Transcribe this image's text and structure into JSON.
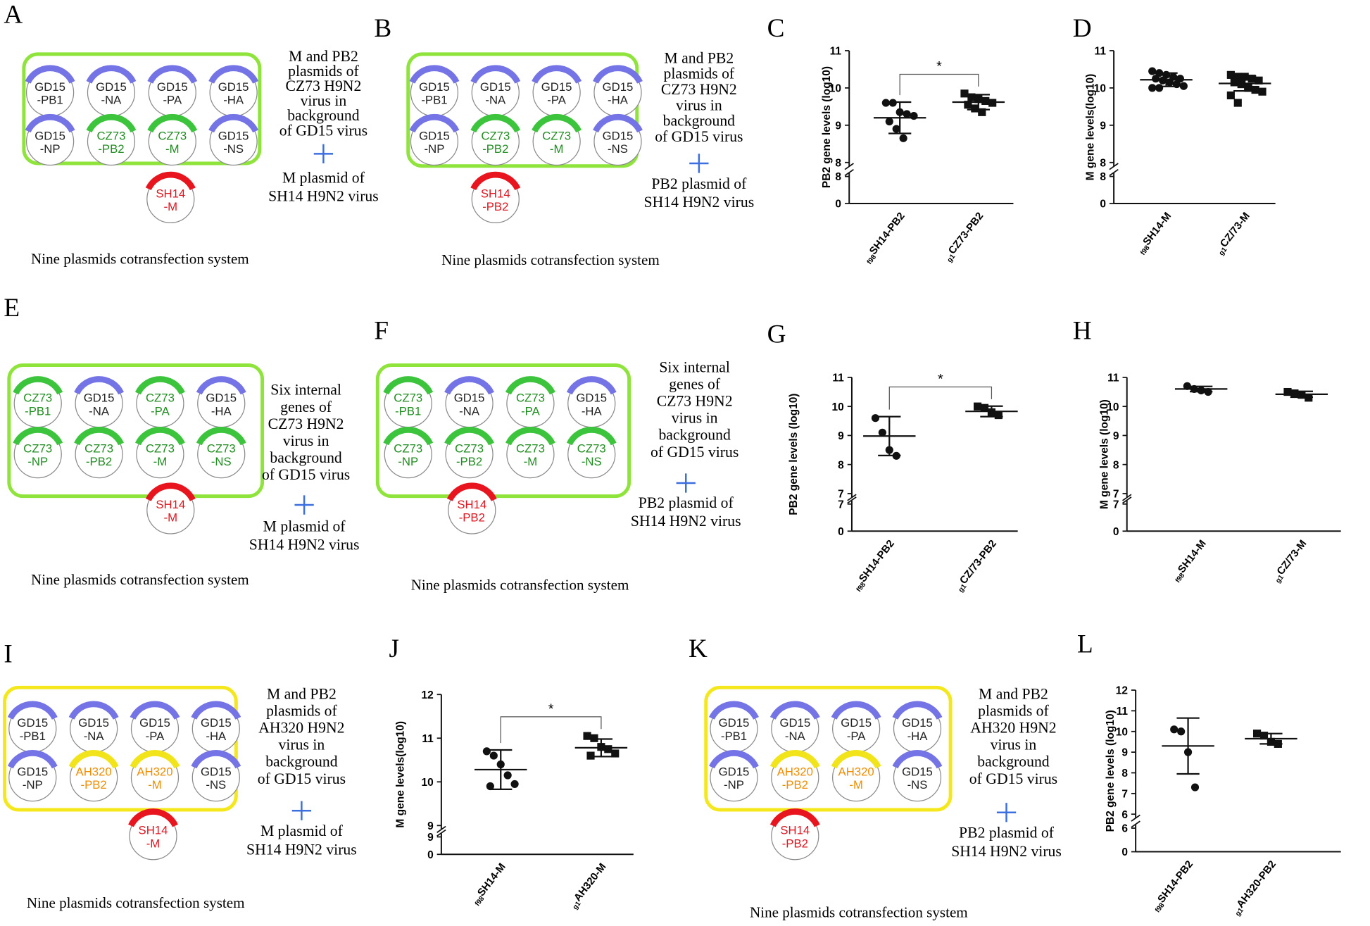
{
  "diagrams": [
    {
      "panel_label": "A",
      "box_color": "#8ee43a",
      "plasmids": [
        {
          "label": [
            "GD15",
            "-PB1"
          ],
          "arc_color": "#7474e6",
          "text_color": "#222222"
        },
        {
          "label": [
            "GD15",
            "-NA"
          ],
          "arc_color": "#7474e6",
          "text_color": "#222222"
        },
        {
          "label": [
            "GD15",
            "-PA"
          ],
          "arc_color": "#7474e6",
          "text_color": "#222222"
        },
        {
          "label": [
            "GD15",
            "-HA"
          ],
          "arc_color": "#7474e6",
          "text_color": "#222222"
        },
        {
          "label": [
            "GD15",
            "-NP"
          ],
          "arc_color": "#7474e6",
          "text_color": "#222222"
        },
        {
          "label": [
            "CZ73",
            "-PB2"
          ],
          "arc_color": "#3cc43c",
          "text_color": "#1e8c1e"
        },
        {
          "label": [
            "CZ73",
            "-M"
          ],
          "arc_color": "#3cc43c",
          "text_color": "#1e8c1e"
        },
        {
          "label": [
            "GD15",
            "-NS"
          ],
          "arc_color": "#7474e6",
          "text_color": "#222222"
        }
      ],
      "added_plasmid": {
        "label": [
          "SH14",
          "-M"
        ],
        "arc_color": "#e8141e",
        "text_color": "#e0141e"
      },
      "description": [
        "M and PB2",
        "plasmids of",
        "CZ73 H9N2",
        "virus in",
        "background",
        "of GD15 virus"
      ],
      "added_description": [
        "M plasmid of",
        "SH14 H9N2 virus"
      ],
      "caption": "Nine plasmids cotransfection system"
    },
    {
      "panel_label": "B",
      "box_color": "#8ee43a",
      "plasmids": [
        {
          "label": [
            "GD15",
            "-PB1"
          ],
          "arc_color": "#7474e6",
          "text_color": "#222222"
        },
        {
          "label": [
            "GD15",
            "-NA"
          ],
          "arc_color": "#7474e6",
          "text_color": "#222222"
        },
        {
          "label": [
            "GD15",
            "-PA"
          ],
          "arc_color": "#7474e6",
          "text_color": "#222222"
        },
        {
          "label": [
            "GD15",
            "-HA"
          ],
          "arc_color": "#7474e6",
          "text_color": "#222222"
        },
        {
          "label": [
            "GD15",
            "-NP"
          ],
          "arc_color": "#7474e6",
          "text_color": "#222222"
        },
        {
          "label": [
            "CZ73",
            "-PB2"
          ],
          "arc_color": "#3cc43c",
          "text_color": "#1e8c1e"
        },
        {
          "label": [
            "CZ73",
            "-M"
          ],
          "arc_color": "#3cc43c",
          "text_color": "#1e8c1e"
        },
        {
          "label": [
            "GD15",
            "-NS"
          ],
          "arc_color": "#7474e6",
          "text_color": "#222222"
        }
      ],
      "added_plasmid": {
        "label": [
          "SH14",
          "-PB2"
        ],
        "arc_color": "#e8141e",
        "text_color": "#e0141e"
      },
      "description": [
        "M and PB2",
        "plasmids of",
        "CZ73 H9N2",
        "virus in",
        "background",
        "of GD15 virus"
      ],
      "added_description": [
        "PB2 plasmid of",
        "SH14 H9N2 virus"
      ],
      "caption": "Nine plasmids cotransfection system"
    },
    {
      "panel_label": "E",
      "box_color": "#8ee43a",
      "plasmids": [
        {
          "label": [
            "CZ73",
            "-PB1"
          ],
          "arc_color": "#3cc43c",
          "text_color": "#1e8c1e"
        },
        {
          "label": [
            "GD15",
            "-NA"
          ],
          "arc_color": "#7474e6",
          "text_color": "#222222"
        },
        {
          "label": [
            "CZ73",
            "-PA"
          ],
          "arc_color": "#3cc43c",
          "text_color": "#1e8c1e"
        },
        {
          "label": [
            "GD15",
            "-HA"
          ],
          "arc_color": "#7474e6",
          "text_color": "#222222"
        },
        {
          "label": [
            "CZ73",
            "-NP"
          ],
          "arc_color": "#3cc43c",
          "text_color": "#1e8c1e"
        },
        {
          "label": [
            "CZ73",
            "-PB2"
          ],
          "arc_color": "#3cc43c",
          "text_color": "#1e8c1e"
        },
        {
          "label": [
            "CZ73",
            "-M"
          ],
          "arc_color": "#3cc43c",
          "text_color": "#1e8c1e"
        },
        {
          "label": [
            "CZ73",
            "-NS"
          ],
          "arc_color": "#3cc43c",
          "text_color": "#1e8c1e"
        }
      ],
      "added_plasmid": {
        "label": [
          "SH14",
          "-M"
        ],
        "arc_color": "#e8141e",
        "text_color": "#e0141e"
      },
      "description": [
        "Six internal",
        "genes of",
        "CZ73 H9N2",
        "virus in",
        "background",
        "of GD15 virus"
      ],
      "added_description": [
        "M plasmid of",
        "SH14 H9N2 virus"
      ],
      "caption": "Nine plasmids cotransfection system"
    },
    {
      "panel_label": "F",
      "box_color": "#8ee43a",
      "plasmids": [
        {
          "label": [
            "CZ73",
            "-PB1"
          ],
          "arc_color": "#3cc43c",
          "text_color": "#1e8c1e"
        },
        {
          "label": [
            "GD15",
            "-NA"
          ],
          "arc_color": "#7474e6",
          "text_color": "#222222"
        },
        {
          "label": [
            "CZ73",
            "-PA"
          ],
          "arc_color": "#3cc43c",
          "text_color": "#1e8c1e"
        },
        {
          "label": [
            "GD15",
            "-HA"
          ],
          "arc_color": "#7474e6",
          "text_color": "#222222"
        },
        {
          "label": [
            "CZ73",
            "-NP"
          ],
          "arc_color": "#3cc43c",
          "text_color": "#1e8c1e"
        },
        {
          "label": [
            "CZ73",
            "-PB2"
          ],
          "arc_color": "#3cc43c",
          "text_color": "#1e8c1e"
        },
        {
          "label": [
            "CZ73",
            "-M"
          ],
          "arc_color": "#3cc43c",
          "text_color": "#1e8c1e"
        },
        {
          "label": [
            "CZ73",
            "-NS"
          ],
          "arc_color": "#3cc43c",
          "text_color": "#1e8c1e"
        }
      ],
      "added_plasmid": {
        "label": [
          "SH14",
          "-PB2"
        ],
        "arc_color": "#e8141e",
        "text_color": "#e0141e"
      },
      "description": [
        "Six internal",
        "genes of",
        "CZ73 H9N2",
        "virus in",
        "background",
        "of GD15 virus"
      ],
      "added_description": [
        "PB2 plasmid of",
        "SH14 H9N2 virus"
      ],
      "caption": "Nine plasmids cotransfection system"
    },
    {
      "panel_label": "I",
      "box_color": "#f4e81c",
      "plasmids": [
        {
          "label": [
            "GD15",
            "-PB1"
          ],
          "arc_color": "#7474e6",
          "text_color": "#222222"
        },
        {
          "label": [
            "GD15",
            "-NA"
          ],
          "arc_color": "#7474e6",
          "text_color": "#222222"
        },
        {
          "label": [
            "GD15",
            "-PA"
          ],
          "arc_color": "#7474e6",
          "text_color": "#222222"
        },
        {
          "label": [
            "GD15",
            "-HA"
          ],
          "arc_color": "#7474e6",
          "text_color": "#222222"
        },
        {
          "label": [
            "GD15",
            "-NP"
          ],
          "arc_color": "#7474e6",
          "text_color": "#222222"
        },
        {
          "label": [
            "AH320",
            "-PB2"
          ],
          "arc_color": "#f2e41a",
          "text_color": "#f08c00"
        },
        {
          "label": [
            "AH320",
            "-M"
          ],
          "arc_color": "#f2e41a",
          "text_color": "#f08c00"
        },
        {
          "label": [
            "GD15",
            "-NS"
          ],
          "arc_color": "#7474e6",
          "text_color": "#222222"
        }
      ],
      "added_plasmid": {
        "label": [
          "SH14",
          "-M"
        ],
        "arc_color": "#e8141e",
        "text_color": "#e0141e"
      },
      "description": [
        "M and PB2",
        "plasmids of",
        "AH320 H9N2",
        "virus in",
        "background",
        "of GD15 virus"
      ],
      "added_description": [
        "M plasmid of",
        "SH14 H9N2 virus"
      ],
      "caption": "Nine plasmids cotransfection system"
    },
    {
      "panel_label": "K",
      "box_color": "#f4e81c",
      "plasmids": [
        {
          "label": [
            "GD15",
            "-PB1"
          ],
          "arc_color": "#7474e6",
          "text_color": "#222222"
        },
        {
          "label": [
            "GD15",
            "-NA"
          ],
          "arc_color": "#7474e6",
          "text_color": "#222222"
        },
        {
          "label": [
            "GD15",
            "-PA"
          ],
          "arc_color": "#7474e6",
          "text_color": "#222222"
        },
        {
          "label": [
            "GD15",
            "-HA"
          ],
          "arc_color": "#7474e6",
          "text_color": "#222222"
        },
        {
          "label": [
            "GD15",
            "-NP"
          ],
          "arc_color": "#7474e6",
          "text_color": "#222222"
        },
        {
          "label": [
            "AH320",
            "-PB2"
          ],
          "arc_color": "#f2e41a",
          "text_color": "#f08c00"
        },
        {
          "label": [
            "AH320",
            "-M"
          ],
          "arc_color": "#f2e41a",
          "text_color": "#f08c00"
        },
        {
          "label": [
            "GD15",
            "-NS"
          ],
          "arc_color": "#7474e6",
          "text_color": "#222222"
        }
      ],
      "added_plasmid": {
        "label": [
          "SH14",
          "-PB2"
        ],
        "arc_color": "#e8141e",
        "text_color": "#e0141e"
      },
      "description": [
        "M and PB2",
        "plasmids of",
        "AH320 H9N2",
        "virus in",
        "background",
        "of GD15 virus"
      ],
      "added_description": [
        "PB2 plasmid of",
        "SH14 H9N2 virus"
      ],
      "caption": "Nine plasmids cotransfection system"
    }
  ],
  "chart_data": [
    {
      "type": "dot",
      "panel_label": "C",
      "y_label": "PB2 gene levels (log10)",
      "ylim": [
        8,
        11
      ],
      "yticks": [
        8,
        9,
        10,
        11
      ],
      "lower_ylim": [
        0,
        8
      ],
      "lower_yticks": [
        0,
        8
      ],
      "significance": "*",
      "groups": [
        {
          "label": {
            "sub": "f98",
            "main": "SH14-PB2"
          },
          "marker": "circle",
          "color": "#111111",
          "points": [
            9.6,
            9.6,
            9.35,
            9.3,
            9.25,
            9.1,
            8.9,
            8.65
          ],
          "mean": 9.2,
          "sd": 0.42
        },
        {
          "label": {
            "sub": "g1",
            "main": "CZ73-PB2"
          },
          "marker": "square",
          "color": "#111111",
          "points": [
            9.85,
            9.75,
            9.7,
            9.65,
            9.6,
            9.55,
            9.45,
            9.35
          ],
          "mean": 9.62,
          "sd": 0.2
        }
      ]
    },
    {
      "type": "dot",
      "panel_label": "D",
      "y_label": "M gene levels(log10)",
      "ylim": [
        8,
        11
      ],
      "yticks": [
        8,
        9,
        10,
        11
      ],
      "lower_ylim": [
        0,
        8
      ],
      "lower_yticks": [
        0,
        8
      ],
      "groups": [
        {
          "label": {
            "sub": "f98",
            "main": "SH14-M"
          },
          "marker": "circle",
          "color": "#111111",
          "points": [
            10.45,
            10.4,
            10.35,
            10.3,
            10.25,
            10.25,
            10.2,
            10.15,
            10.1,
            10.05,
            10.0,
            10.0
          ],
          "mean": 10.22,
          "sd": 0.18
        },
        {
          "label": {
            "sub": "g1",
            "main": "CZ/73-M"
          },
          "marker": "square",
          "color": "#111111",
          "points": [
            10.35,
            10.3,
            10.3,
            10.25,
            10.2,
            10.15,
            10.1,
            10.0,
            9.95,
            9.9,
            9.8,
            9.6
          ],
          "mean": 10.12,
          "sd": 0.2
        }
      ]
    },
    {
      "type": "dot",
      "panel_label": "G",
      "y_label": "PB2 gene levels (log10)",
      "ylim": [
        7,
        11
      ],
      "yticks": [
        7,
        8,
        9,
        10,
        11
      ],
      "lower_ylim": [
        0,
        7
      ],
      "lower_yticks": [
        0,
        7
      ],
      "significance": "*",
      "groups": [
        {
          "label": {
            "sub": "f98",
            "main": "SH14-PB2"
          },
          "marker": "circle",
          "color": "#111111",
          "points": [
            9.6,
            9.1,
            8.5,
            8.3
          ],
          "mean": 8.98,
          "sd": 0.67
        },
        {
          "label": {
            "sub": "g1",
            "main": "CZ/73-PB2"
          },
          "marker": "square",
          "color": "#111111",
          "points": [
            10.0,
            9.95,
            9.8,
            9.7
          ],
          "mean": 9.83,
          "sd": 0.18
        }
      ]
    },
    {
      "type": "dot",
      "panel_label": "H",
      "y_label": "M gene levels (log10)",
      "ylim": [
        7,
        11
      ],
      "yticks": [
        7,
        8,
        9,
        10,
        11
      ],
      "lower_ylim": [
        0,
        7
      ],
      "lower_yticks": [
        0,
        7
      ],
      "groups": [
        {
          "label": {
            "sub": "f98",
            "main": "SH14-M"
          },
          "marker": "circle",
          "color": "#111111",
          "points": [
            10.7,
            10.6,
            10.55,
            10.5
          ],
          "mean": 10.6,
          "sd": 0.09
        },
        {
          "label": {
            "sub": "g1",
            "main": "CZ/73-M"
          },
          "marker": "square",
          "color": "#111111",
          "points": [
            10.5,
            10.45,
            10.4,
            10.3
          ],
          "mean": 10.42,
          "sd": 0.1
        }
      ]
    },
    {
      "type": "dot",
      "panel_label": "J",
      "y_label": "M gene levels(log10)",
      "ylim": [
        9,
        12
      ],
      "yticks": [
        9,
        10,
        11,
        12
      ],
      "lower_ylim": [
        0,
        9
      ],
      "lower_yticks": [
        0,
        9
      ],
      "significance": "*",
      "groups": [
        {
          "label": {
            "sub": "f98",
            "main": "SH14-M"
          },
          "marker": "circle",
          "color": "#111111",
          "points": [
            10.7,
            10.6,
            10.4,
            10.15,
            9.95,
            9.9
          ],
          "mean": 10.28,
          "sd": 0.45
        },
        {
          "label": {
            "sub": "g1",
            "main": "AH320-M"
          },
          "marker": "square",
          "color": "#111111",
          "points": [
            11.05,
            11.0,
            10.8,
            10.75,
            10.65,
            10.6
          ],
          "mean": 10.78,
          "sd": 0.2
        }
      ]
    },
    {
      "type": "dot",
      "panel_label": "L",
      "y_label": "PB2 gene levels (log10)",
      "ylim": [
        6,
        12
      ],
      "yticks": [
        6,
        7,
        8,
        9,
        10,
        11,
        12
      ],
      "lower_ylim": [
        0,
        6
      ],
      "lower_yticks": [
        0,
        6
      ],
      "groups": [
        {
          "label": {
            "sub": "f98",
            "main": "SH14-PB2"
          },
          "marker": "circle",
          "color": "#111111",
          "points": [
            10.1,
            10.0,
            9.0,
            7.3
          ],
          "mean": 9.3,
          "sd": 1.35
        },
        {
          "label": {
            "sub": "g1",
            "main": "AH320-PB2"
          },
          "marker": "square",
          "color": "#111111",
          "points": [
            9.9,
            9.8,
            9.5,
            9.4
          ],
          "mean": 9.65,
          "sd": 0.25
        }
      ]
    }
  ]
}
